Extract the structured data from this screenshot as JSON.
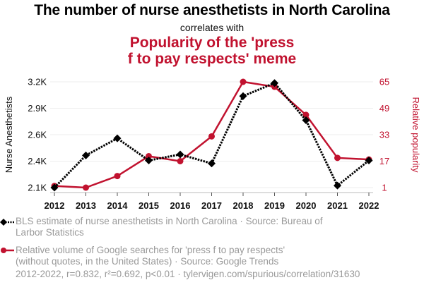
{
  "header": {
    "title": "The number of nurse anesthetists in North Carolina",
    "subtitle": "correlates with",
    "title2_line1": "Popularity of the 'press",
    "title2_line2": "f to pay respects' meme"
  },
  "colors": {
    "series1": "#000000",
    "series2": "#c1122f",
    "grid": "#eeeeee",
    "legend_text": "#999999"
  },
  "legend": {
    "item1_line1": "BLS estimate of nurse anesthetists in North Carolina · Source: Bureau of",
    "item1_line2": "Larbor Statistics",
    "item2_line1": "Relative volume of Google searches for 'press f to pay respects'",
    "item2_line2": "(without quotes, in the United States) · Source: Google Trends"
  },
  "footer": "2012-2022, r=0.832, r²=0.692, p<0.01 · tylervigen.com/spurious/correlation/31630",
  "chart_data": {
    "type": "line",
    "title": "The number of nurse anesthetists in North Carolina correlates with Popularity of the 'press f to pay respects' meme",
    "x": [
      "2012",
      "2013",
      "2014",
      "2015",
      "2016",
      "2017",
      "2018",
      "2019",
      "2020",
      "2021",
      "2022"
    ],
    "xlabel": "",
    "grid": "horizontal",
    "legend_position": "bottom",
    "left_axis": {
      "label": "Nurse Anesthetists",
      "ticks": [
        "2.1K",
        "2.4K",
        "2.6K",
        "2.9K",
        "3.2K"
      ],
      "tick_values": [
        2120,
        2383,
        2646,
        2909,
        3172
      ],
      "range": [
        2120,
        3172
      ]
    },
    "right_axis": {
      "label": "Relative popularity",
      "ticks": [
        "1",
        "17",
        "33",
        "49",
        "65"
      ],
      "tick_values": [
        1,
        17,
        33,
        49,
        65
      ],
      "range": [
        1,
        65
      ]
    },
    "series": [
      {
        "name": "BLS estimate of nurse anesthetists in North Carolina",
        "axis": "left",
        "style": "dotted-diamond",
        "values": [
          2120,
          2440,
          2610,
          2390,
          2450,
          2360,
          3030,
          3160,
          2790,
          2140,
          2390
        ]
      },
      {
        "name": "Relative volume of Google searches for 'press f to pay respects'",
        "axis": "right",
        "style": "solid-circle",
        "values": [
          2,
          1,
          8,
          20,
          17,
          32,
          65,
          62,
          45,
          19,
          18
        ]
      }
    ]
  }
}
